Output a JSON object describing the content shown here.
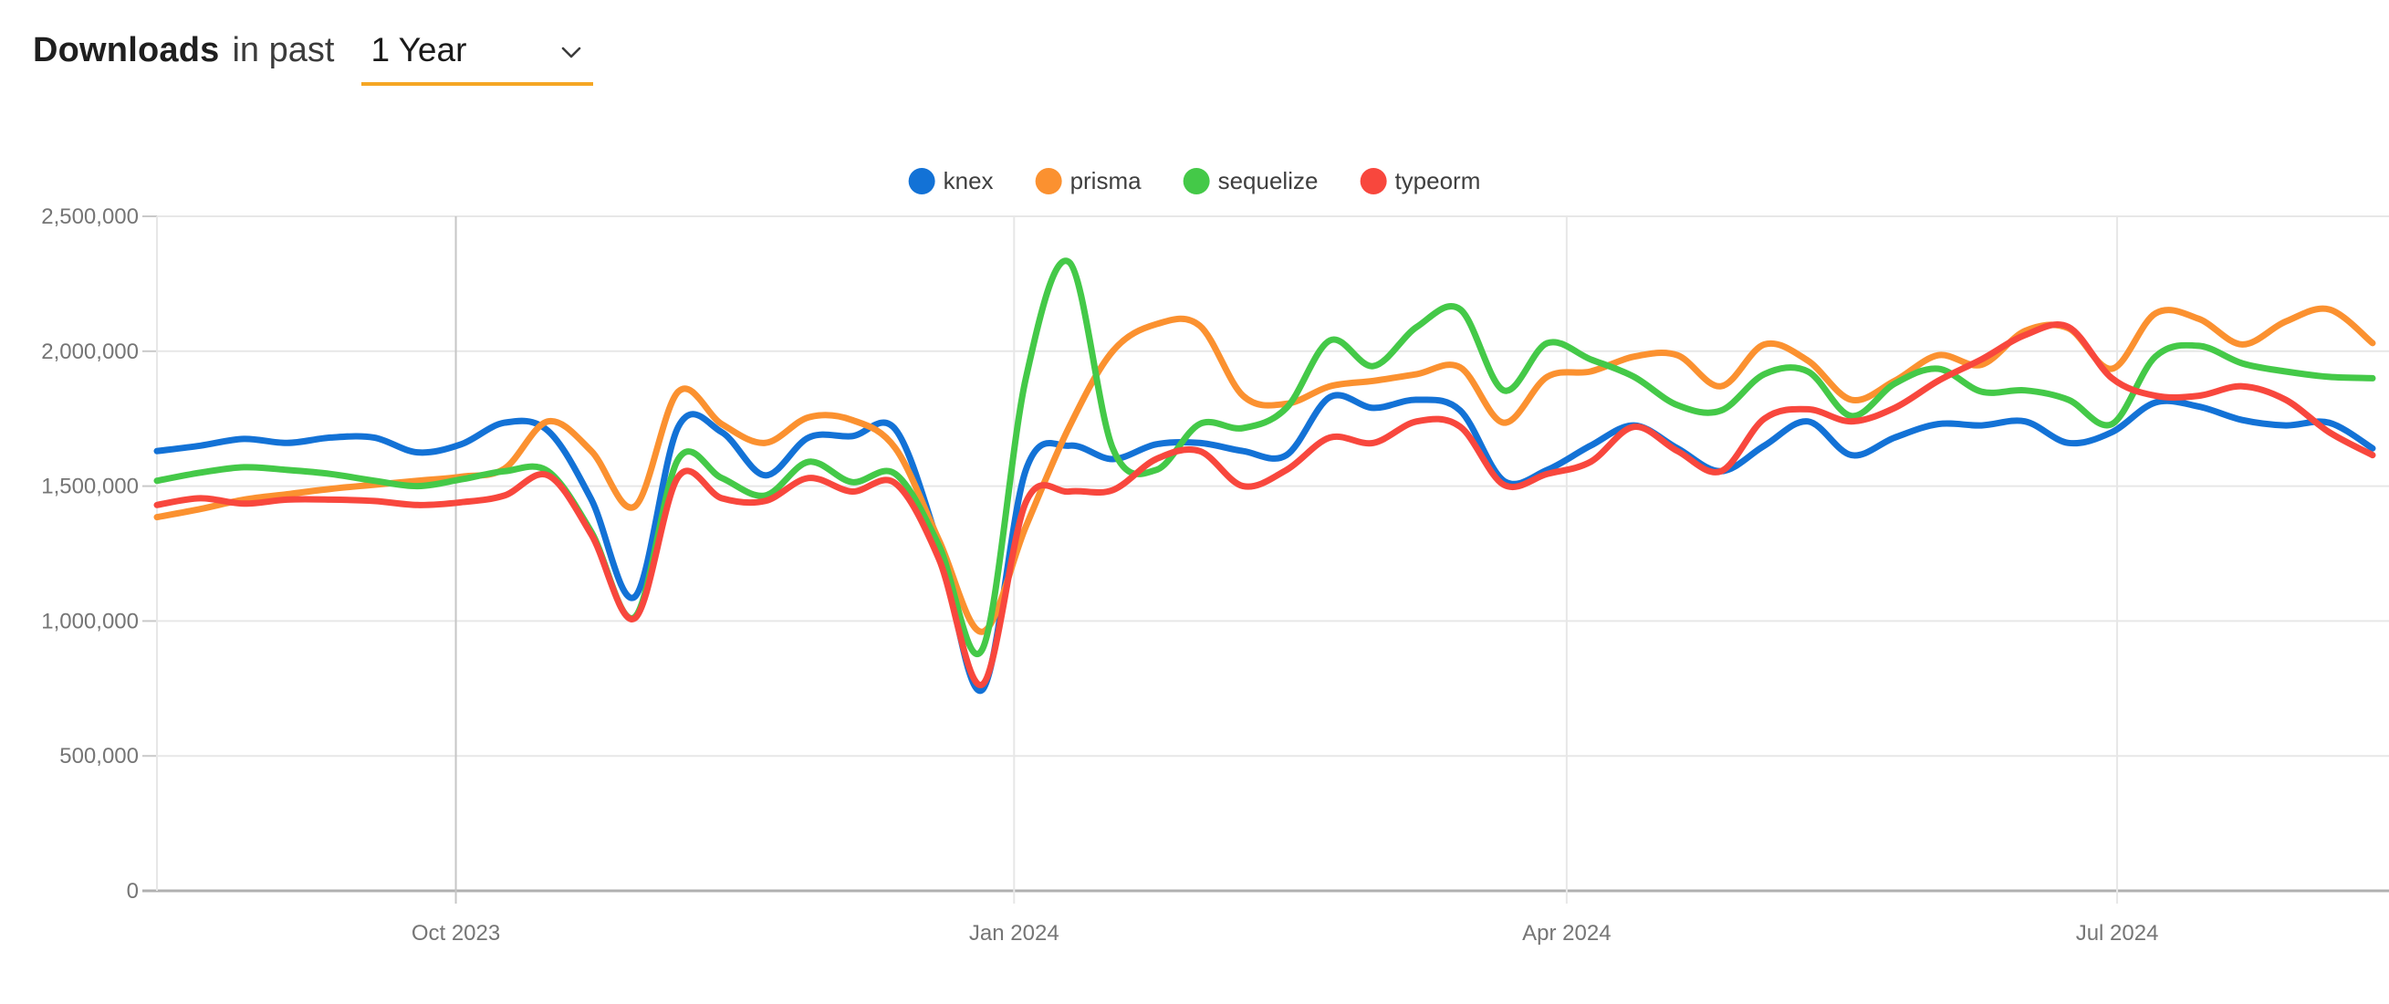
{
  "header": {
    "title_bold": "Downloads",
    "title_rest": "in past",
    "dropdown_value": "1 Year",
    "accent_underline_color": "#f5a623"
  },
  "chart_data": {
    "type": "line",
    "title": "Downloads in past 1 Year",
    "ylabel": "",
    "xlabel": "",
    "ylim": [
      0,
      2500000
    ],
    "grid": true,
    "legend_position": "top-center",
    "yticks": [
      0,
      500000,
      1000000,
      1500000,
      2000000,
      2500000
    ],
    "xticks": [
      {
        "label": "Oct 2023",
        "week": 6.88,
        "emphasis": true
      },
      {
        "label": "Jan 2024",
        "week": 19.73,
        "emphasis": false
      },
      {
        "label": "Apr 2024",
        "week": 32.45,
        "emphasis": false
      },
      {
        "label": "Jul 2024",
        "week": 45.12,
        "emphasis": false
      }
    ],
    "x_unit": "weekly samples, mid-Aug 2023 to mid-Aug 2024",
    "series": [
      {
        "name": "knex",
        "color": "#1372d6",
        "values": [
          1630000,
          1650000,
          1675000,
          1660000,
          1680000,
          1680000,
          1625000,
          1655000,
          1735000,
          1705000,
          1450000,
          1090000,
          1720000,
          1700000,
          1540000,
          1680000,
          1685000,
          1710000,
          1280000,
          745000,
          1560000,
          1650000,
          1600000,
          1655000,
          1660000,
          1630000,
          1615000,
          1830000,
          1790000,
          1820000,
          1780000,
          1520000,
          1560000,
          1650000,
          1725000,
          1640000,
          1555000,
          1650000,
          1740000,
          1615000,
          1680000,
          1730000,
          1725000,
          1740000,
          1660000,
          1700000,
          1810000,
          1795000,
          1745000,
          1725000,
          1735000,
          1640000
        ]
      },
      {
        "name": "prisma",
        "color": "#fb9130",
        "values": [
          1385000,
          1415000,
          1450000,
          1470000,
          1490000,
          1505000,
          1520000,
          1535000,
          1565000,
          1740000,
          1630000,
          1425000,
          1850000,
          1730000,
          1660000,
          1755000,
          1745000,
          1640000,
          1300000,
          960000,
          1350000,
          1720000,
          2000000,
          2100000,
          2095000,
          1835000,
          1805000,
          1870000,
          1890000,
          1915000,
          1940000,
          1735000,
          1905000,
          1925000,
          1980000,
          1985000,
          1870000,
          2025000,
          1965000,
          1820000,
          1890000,
          1985000,
          1950000,
          2075000,
          2085000,
          1935000,
          2140000,
          2120000,
          2025000,
          2110000,
          2155000,
          2030000
        ]
      },
      {
        "name": "sequelize",
        "color": "#44c948",
        "values": [
          1520000,
          1550000,
          1570000,
          1560000,
          1545000,
          1520000,
          1500000,
          1525000,
          1555000,
          1555000,
          1330000,
          1015000,
          1600000,
          1530000,
          1465000,
          1590000,
          1515000,
          1545000,
          1280000,
          895000,
          1900000,
          2330000,
          1640000,
          1560000,
          1730000,
          1715000,
          1790000,
          2040000,
          1945000,
          2090000,
          2155000,
          1855000,
          2030000,
          1970000,
          1905000,
          1800000,
          1780000,
          1915000,
          1925000,
          1760000,
          1880000,
          1935000,
          1850000,
          1855000,
          1820000,
          1730000,
          1980000,
          2020000,
          1955000,
          1925000,
          1905000,
          1900000
        ]
      },
      {
        "name": "typeorm",
        "color": "#f8473d",
        "values": [
          1430000,
          1455000,
          1435000,
          1450000,
          1450000,
          1445000,
          1430000,
          1440000,
          1465000,
          1540000,
          1320000,
          1010000,
          1535000,
          1455000,
          1445000,
          1530000,
          1480000,
          1510000,
          1230000,
          765000,
          1440000,
          1480000,
          1485000,
          1600000,
          1630000,
          1500000,
          1560000,
          1680000,
          1660000,
          1740000,
          1720000,
          1505000,
          1545000,
          1590000,
          1720000,
          1630000,
          1555000,
          1750000,
          1785000,
          1740000,
          1790000,
          1890000,
          1970000,
          2060000,
          2090000,
          1900000,
          1835000,
          1835000,
          1870000,
          1820000,
          1700000,
          1615000
        ]
      }
    ],
    "annotations": {
      "thanksgiving_dip_week": 11,
      "holiday_dip_week": 19,
      "sequelize_spike_peak": 2330000
    }
  },
  "layout_colors": {
    "grid_light": "#e7e7e7",
    "grid_emphasis": "#c6c6c6",
    "axis_line": "#b0b0b0",
    "tick_mark": "#c9c9c9"
  }
}
